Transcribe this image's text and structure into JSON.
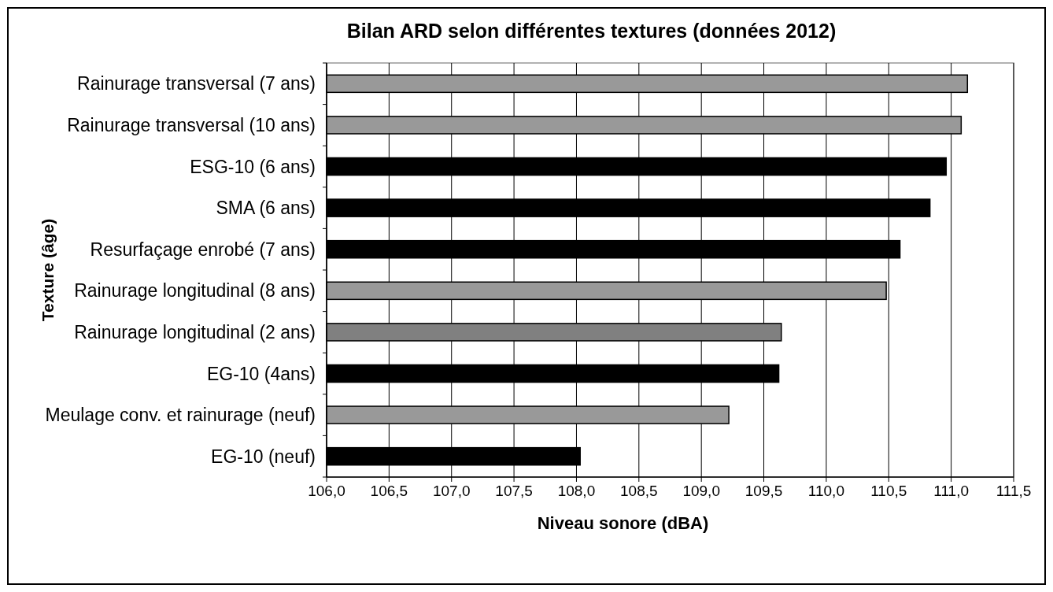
{
  "chart_data": {
    "type": "bar",
    "orientation": "horizontal",
    "title": "Bilan ARD selon différentes textures (données 2012)",
    "xlabel": "Niveau sonore (dBA)",
    "ylabel": "Texture (âge)",
    "categories": [
      "Rainurage transversal (7 ans)",
      "Rainurage transversal (10 ans)",
      "ESG-10 (6 ans)",
      "SMA (6 ans)",
      "Resurfaçage enrobé (7 ans)",
      "Rainurage longitudinal (8 ans)",
      "Rainurage longitudinal (2 ans)",
      "EG-10 (4ans)",
      "Meulage conv. et rainurage (neuf)",
      "EG-10 (neuf)"
    ],
    "values": [
      111.13,
      111.08,
      110.96,
      110.83,
      110.59,
      110.48,
      109.64,
      109.62,
      109.22,
      108.03
    ],
    "colors": [
      "#999999",
      "#999999",
      "#000000",
      "#000000",
      "#000000",
      "#999999",
      "#808080",
      "#000000",
      "#999999",
      "#000000"
    ],
    "xlim": [
      106,
      111.5
    ],
    "xticks": [
      {
        "value": 106,
        "label": "106,0"
      },
      {
        "value": 106.5,
        "label": "106,5"
      },
      {
        "value": 107,
        "label": "107,0"
      },
      {
        "value": 107.5,
        "label": "107,5"
      },
      {
        "value": 108,
        "label": "108,0"
      },
      {
        "value": 108.5,
        "label": "108,5"
      },
      {
        "value": 109,
        "label": "109,0"
      },
      {
        "value": 109.5,
        "label": "109,5"
      },
      {
        "value": 110,
        "label": "110,0"
      },
      {
        "value": 110.5,
        "label": "110,5"
      },
      {
        "value": 111,
        "label": "111,0"
      },
      {
        "value": 111.5,
        "label": "111,5"
      }
    ],
    "grid": "x",
    "legend": false
  }
}
